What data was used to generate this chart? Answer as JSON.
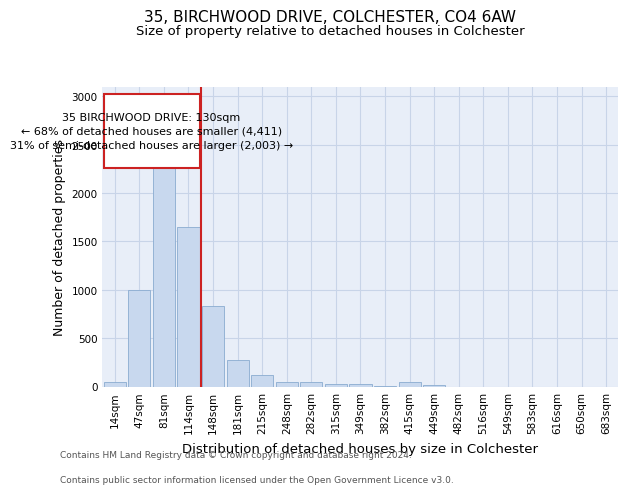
{
  "title_line1": "35, BIRCHWOOD DRIVE, COLCHESTER, CO4 6AW",
  "title_line2": "Size of property relative to detached houses in Colchester",
  "xlabel": "Distribution of detached houses by size in Colchester",
  "ylabel": "Number of detached properties",
  "categories": [
    "14sqm",
    "47sqm",
    "81sqm",
    "114sqm",
    "148sqm",
    "181sqm",
    "215sqm",
    "248sqm",
    "282sqm",
    "315sqm",
    "349sqm",
    "382sqm",
    "415sqm",
    "449sqm",
    "482sqm",
    "516sqm",
    "549sqm",
    "583sqm",
    "616sqm",
    "650sqm",
    "683sqm"
  ],
  "values": [
    50,
    1000,
    2450,
    1650,
    830,
    270,
    120,
    50,
    45,
    30,
    30,
    5,
    50,
    20,
    0,
    0,
    0,
    0,
    0,
    0,
    0
  ],
  "bar_color": "#c8d8ee",
  "bar_edge_color": "#8aacd0",
  "ref_line_color": "#cc2222",
  "ref_line_x": 3.5,
  "annotation_text": "35 BIRCHWOOD DRIVE: 130sqm\n← 68% of detached houses are smaller (4,411)\n31% of semi-detached houses are larger (2,003) →",
  "annotation_box_color": "#ffffff",
  "annotation_box_edge_color": "#cc2222",
  "ylim": [
    0,
    3100
  ],
  "yticks": [
    0,
    500,
    1000,
    1500,
    2000,
    2500,
    3000
  ],
  "grid_color": "#c8d4e8",
  "background_color": "#e8eef8",
  "footer_line1": "Contains HM Land Registry data © Crown copyright and database right 2024.",
  "footer_line2": "Contains public sector information licensed under the Open Government Licence v3.0.",
  "title_fontsize": 11,
  "subtitle_fontsize": 9.5,
  "tick_fontsize": 7.5,
  "ylabel_fontsize": 9,
  "xlabel_fontsize": 9.5,
  "annotation_fontsize": 8,
  "footer_fontsize": 6.5
}
